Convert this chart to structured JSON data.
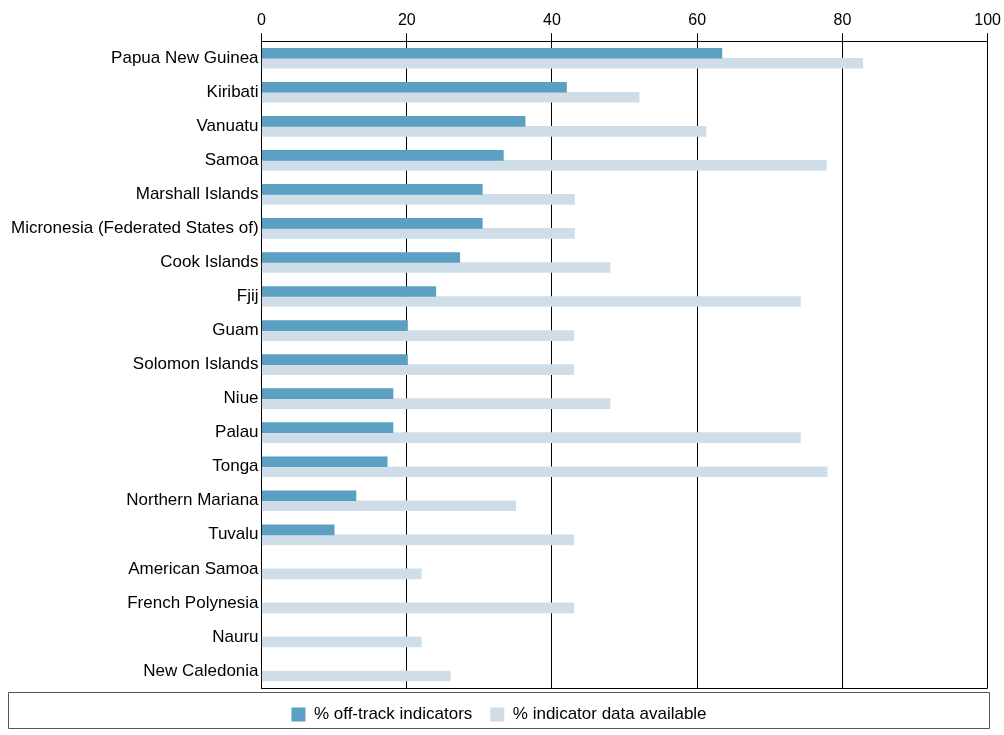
{
  "chart_data": {
    "type": "bar",
    "orientation": "horizontal",
    "categories": [
      "Papua New Guinea",
      "Kiribati",
      "Vanuatu",
      "Samoa",
      "Marshall Islands",
      "Micronesia (Federated States of)",
      "Cook Islands",
      "Fjij",
      "Guam",
      "Solomon Islands",
      "Niue",
      "Palau",
      "Tonga",
      "Northern Mariana",
      "Tuvalu",
      "American Samoa",
      "French Polynesia",
      "Nauru",
      "New Caledonia"
    ],
    "series": [
      {
        "name": "% off-track indicators",
        "color": "#5b9fc2",
        "values": [
          63.4,
          42,
          36.3,
          33.3,
          30.4,
          30.4,
          27.3,
          24,
          20.1,
          20.1,
          18.1,
          18.1,
          17.3,
          13,
          10,
          null,
          null,
          null,
          null
        ]
      },
      {
        "name": "% indicator data available",
        "color": "#cfdde9",
        "values": [
          82.8,
          52,
          61.2,
          77.8,
          43.1,
          43.1,
          48,
          74.2,
          43,
          43,
          48,
          74.2,
          77.9,
          35,
          43,
          22,
          43,
          22,
          26
        ]
      }
    ],
    "xlim": [
      0,
      100
    ],
    "xticks": [
      0,
      20,
      40,
      60,
      80,
      100
    ],
    "grid": "x",
    "legend": "bottom"
  }
}
